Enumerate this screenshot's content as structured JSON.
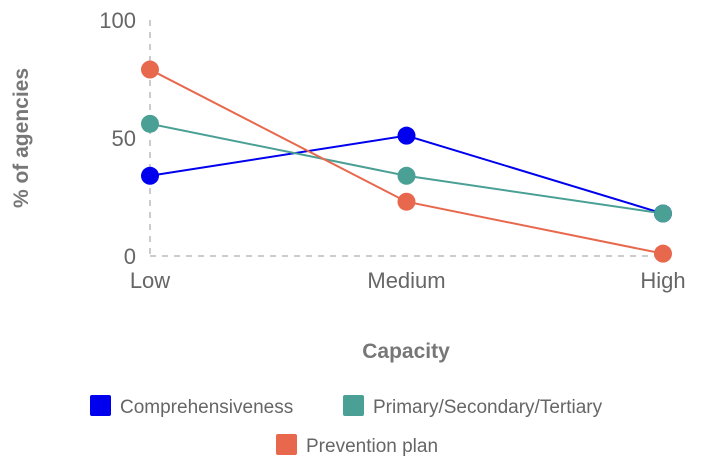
{
  "chart_data": {
    "type": "line",
    "categories": [
      "Low",
      "Medium",
      "High"
    ],
    "series": [
      {
        "name": "Comprehensiveness",
        "color": "#0000ee",
        "values": [
          34,
          51,
          18
        ]
      },
      {
        "name": "Primary/Secondary/Tertiary",
        "color": "#4aa095",
        "values": [
          56,
          34,
          18
        ]
      },
      {
        "name": "Prevention plan",
        "color": "#e8684e",
        "values": [
          79,
          23,
          1
        ]
      }
    ],
    "title": "",
    "xlabel": "Capacity",
    "ylabel": "% of agencies",
    "yticks": [
      "0",
      "50",
      "100"
    ],
    "ylim": [
      0,
      100
    ],
    "grid": false,
    "legend_position": "bottom"
  }
}
